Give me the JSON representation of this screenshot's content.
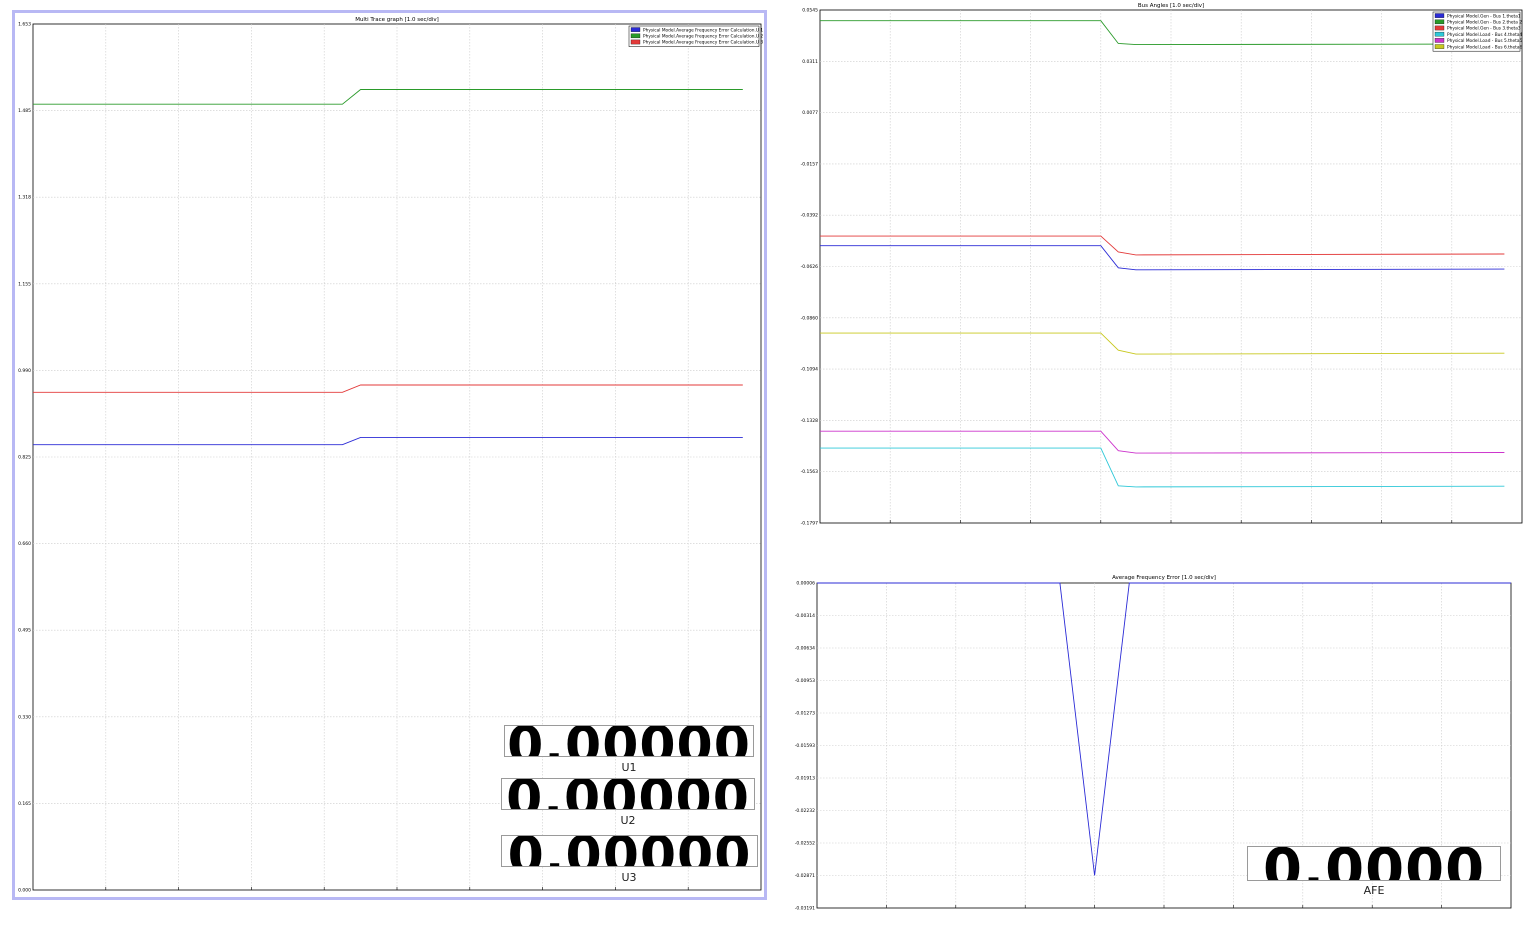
{
  "colors": {
    "blue": "#2b2bd6",
    "green": "#2a9a2a",
    "red": "#e33a3a",
    "cyan": "#2ec8d8",
    "magenta": "#cc33cc",
    "yellow": "#c8c81e",
    "grid": "#cccccc",
    "selection": "#b8b8f4"
  },
  "readouts": [
    {
      "value": "0.00000",
      "label": "U1"
    },
    {
      "value": "0.00000",
      "label": "U2"
    },
    {
      "value": "0.00000",
      "label": "U3"
    },
    {
      "value": "0.0000",
      "label": "AFE"
    }
  ],
  "chart_data": [
    {
      "type": "line",
      "title": "Multi Trace graph [1.0 sec/div]",
      "ytick_labels": [
        "1.653",
        "1.485",
        "1.318",
        "1.155",
        "0.990",
        "0.825",
        "0.660",
        "0.495",
        "0.330",
        "0.165",
        "0.000"
      ],
      "ylim": [
        0.0,
        1.653
      ],
      "xlim": [
        0,
        10
      ],
      "grid": true,
      "legend_position": "top-right",
      "series": [
        {
          "name": "Physical Model.Average Frequency Error Calculation.U 1",
          "color_key": "blue",
          "x": [
            0,
            4.25,
            4.5,
            9.75
          ],
          "y": [
            0.85,
            0.85,
            0.864,
            0.864
          ]
        },
        {
          "name": "Physical Model.Average Frequency Error Calculation.U 2",
          "color_key": "green",
          "x": [
            0,
            4.25,
            4.5,
            9.75
          ],
          "y": [
            1.5,
            1.5,
            1.528,
            1.528
          ]
        },
        {
          "name": "Physical Model.Average Frequency Error Calculation.U 3",
          "color_key": "red",
          "x": [
            0,
            4.25,
            4.5,
            9.75
          ],
          "y": [
            0.95,
            0.95,
            0.964,
            0.964
          ]
        }
      ]
    },
    {
      "type": "line",
      "title": "Bus Angles [1.0 sec/div]",
      "ytick_labels": [
        "0.0545",
        "0.0311",
        "0.0077",
        "-0.0157",
        "-0.0392",
        "-0.0626",
        "-0.0860",
        "-0.1094",
        "-0.1328",
        "-0.1563",
        "-0.1797"
      ],
      "ylim": [
        -0.1797,
        0.0545
      ],
      "xlim": [
        0,
        10
      ],
      "grid": true,
      "legend_position": "top-right",
      "series": [
        {
          "name": "Physical Model.Gen - Bus 1.theta1",
          "color_key": "blue",
          "x": [
            0,
            4.0,
            4.25,
            4.5,
            9.75
          ],
          "y": [
            -0.0531,
            -0.0531,
            -0.0632,
            -0.0641,
            -0.0638
          ]
        },
        {
          "name": "Physical Model.Gen - Bus 2.theta 2",
          "color_key": "green",
          "x": [
            0,
            4.0,
            4.25,
            4.5,
            9.75
          ],
          "y": [
            0.0496,
            0.0496,
            0.0392,
            0.0387,
            0.039
          ]
        },
        {
          "name": "Physical Model.Gen - Bus 3.theta3",
          "color_key": "red",
          "x": [
            0,
            4.0,
            4.25,
            4.5,
            9.75
          ],
          "y": [
            -0.0487,
            -0.0487,
            -0.056,
            -0.0573,
            -0.0569
          ]
        },
        {
          "name": "Physical Model.Load - Bus 4.theta4",
          "color_key": "cyan",
          "x": [
            0,
            4.0,
            4.25,
            4.5,
            9.75
          ],
          "y": [
            -0.1455,
            -0.1455,
            -0.1627,
            -0.1632,
            -0.1629
          ]
        },
        {
          "name": "Physical Model.Load - Bus 5.theta5",
          "color_key": "magenta",
          "x": [
            0,
            4.0,
            4.25,
            4.5,
            9.75
          ],
          "y": [
            -0.1378,
            -0.1378,
            -0.1467,
            -0.1478,
            -0.1475
          ]
        },
        {
          "name": "Physical Model.Load - Bus 6.theta6",
          "color_key": "yellow",
          "x": [
            0,
            4.0,
            4.25,
            4.5,
            9.75
          ],
          "y": [
            -0.093,
            -0.093,
            -0.1008,
            -0.1026,
            -0.1022
          ]
        }
      ]
    },
    {
      "type": "line",
      "title": "Average Frequency Error [1.0 sec/div]",
      "ytick_labels": [
        "0.00006",
        "-0.00314",
        "-0.00634",
        "-0.00953",
        "-0.01273",
        "-0.01593",
        "-0.01913",
        "-0.02232",
        "-0.02552",
        "-0.02871",
        "-0.03191"
      ],
      "ylim": [
        -0.03191,
        6e-05
      ],
      "xlim": [
        0,
        10
      ],
      "grid": true,
      "series": [
        {
          "name": "",
          "color_key": "blue",
          "x": [
            0,
            3.5,
            4.0,
            4.5,
            10
          ],
          "y": [
            6e-05,
            6e-05,
            -0.02871,
            6e-05,
            6e-05
          ]
        }
      ]
    }
  ]
}
